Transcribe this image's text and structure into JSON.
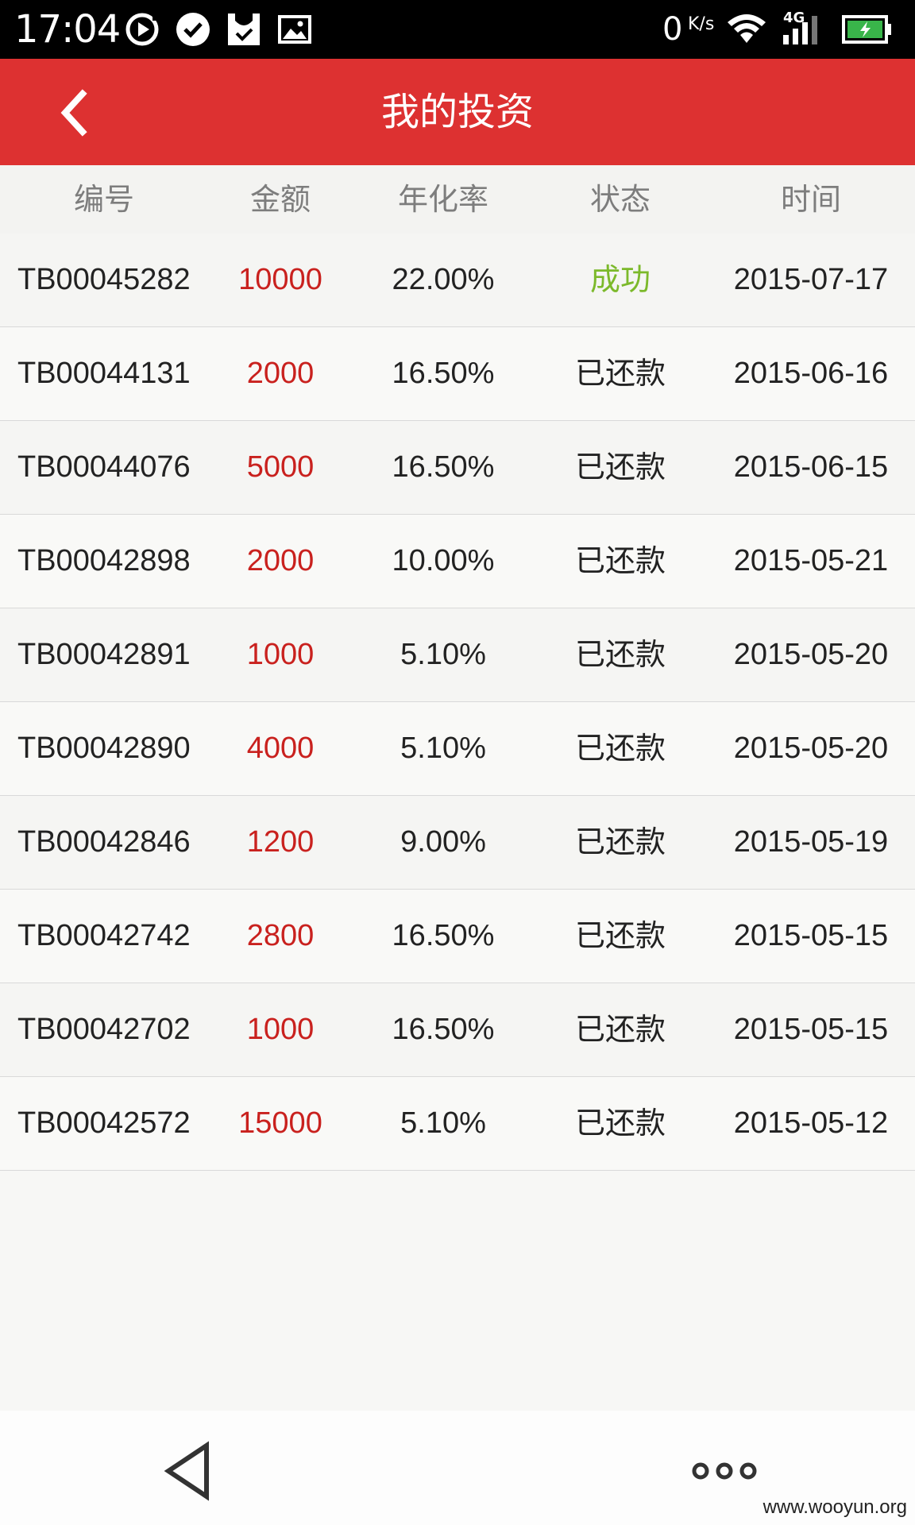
{
  "status_bar": {
    "time": "17:04",
    "speed": "0",
    "speed_unit": "K/s",
    "network": "4G",
    "icons": [
      "play-circle-icon",
      "check-circle-icon",
      "shopping-bag-icon",
      "image-icon",
      "wifi-icon",
      "signal-icon",
      "battery-charging-icon"
    ]
  },
  "header": {
    "title": "我的投资",
    "back_icon": "chevron-left-icon"
  },
  "table": {
    "columns": [
      "编号",
      "金额",
      "年化率",
      "状态",
      "时间"
    ],
    "rows": [
      {
        "id": "TB00045282",
        "amount": "10000",
        "rate": "22.00%",
        "status": "成功",
        "date": "2015-07-17"
      },
      {
        "id": "TB00044131",
        "amount": "2000",
        "rate": "16.50%",
        "status": "已还款",
        "date": "2015-06-16"
      },
      {
        "id": "TB00044076",
        "amount": "5000",
        "rate": "16.50%",
        "status": "已还款",
        "date": "2015-06-15"
      },
      {
        "id": "TB00042898",
        "amount": "2000",
        "rate": "10.00%",
        "status": "已还款",
        "date": "2015-05-21"
      },
      {
        "id": "TB00042891",
        "amount": "1000",
        "rate": "5.10%",
        "status": "已还款",
        "date": "2015-05-20"
      },
      {
        "id": "TB00042890",
        "amount": "4000",
        "rate": "5.10%",
        "status": "已还款",
        "date": "2015-05-20"
      },
      {
        "id": "TB00042846",
        "amount": "1200",
        "rate": "9.00%",
        "status": "已还款",
        "date": "2015-05-19"
      },
      {
        "id": "TB00042742",
        "amount": "2800",
        "rate": "16.50%",
        "status": "已还款",
        "date": "2015-05-15"
      },
      {
        "id": "TB00042702",
        "amount": "1000",
        "rate": "16.50%",
        "status": "已还款",
        "date": "2015-05-15"
      },
      {
        "id": "TB00042572",
        "amount": "15000",
        "rate": "5.10%",
        "status": "已还款",
        "date": "2015-05-12"
      }
    ]
  },
  "colors": {
    "header_bg": "#dd3131",
    "amount": "#c9211e",
    "status_success": "#7cb92b"
  },
  "bottom_nav": {
    "back_icon": "triangle-back-icon",
    "more_icon": "more-dots-icon"
  },
  "watermark": "www.wooyun.org"
}
